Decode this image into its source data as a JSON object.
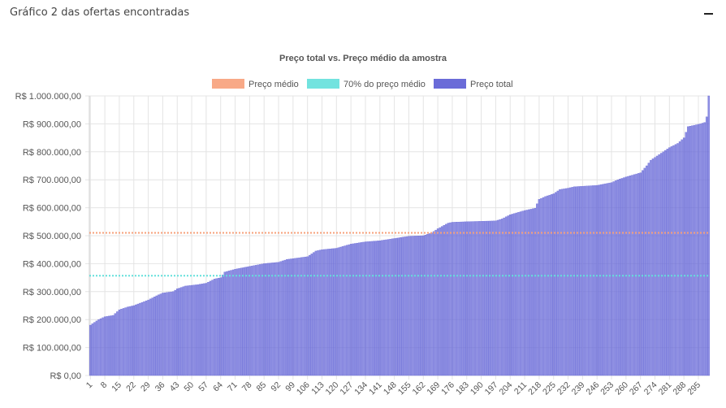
{
  "panel": {
    "title": "Gráfico 2 das ofertas encontradas",
    "collapse_icon": "minus-icon"
  },
  "chart_data": {
    "type": "bar",
    "title": "Preço total vs. Preço médio da amostra",
    "legend": [
      {
        "name": "Preço médio",
        "color": "#f7a07a",
        "style": "dotted-line"
      },
      {
        "name": "70% do preço médio",
        "color": "#63e0db",
        "style": "dotted-line"
      },
      {
        "name": "Preço total",
        "color": "#6a6bd8",
        "style": "bar"
      }
    ],
    "legend_position": "top",
    "grid": true,
    "ylim": [
      0,
      1000000
    ],
    "y_ticks": [
      "R$ 0,00",
      "R$ 100.000,00",
      "R$ 200.000,00",
      "R$ 300.000,00",
      "R$ 400.000,00",
      "R$ 500.000,00",
      "R$ 600.000,00",
      "R$ 700.000,00",
      "R$ 800.000,00",
      "R$ 900.000,00",
      "R$ 1.000.000,00"
    ],
    "x_tick_labels": [
      "1",
      "8",
      "15",
      "22",
      "29",
      "36",
      "43",
      "50",
      "57",
      "64",
      "71",
      "78",
      "85",
      "92",
      "99",
      "106",
      "113",
      "120",
      "127",
      "134",
      "141",
      "148",
      "155",
      "162",
      "169",
      "176",
      "183",
      "190",
      "197",
      "204",
      "211",
      "218",
      "225",
      "232",
      "239",
      "246",
      "253",
      "260",
      "267",
      "274",
      "281",
      "288",
      "295"
    ],
    "n_points": 300,
    "series": [
      {
        "name": "Preço médio",
        "type": "line",
        "value": 510000,
        "color": "#f7a07a"
      },
      {
        "name": "70% do preço médio",
        "type": "line",
        "value": 357000,
        "color": "#63e0db"
      },
      {
        "name": "Preço total",
        "type": "bar",
        "color": "#6a6bd8",
        "anchors": [
          [
            1,
            180000
          ],
          [
            5,
            200000
          ],
          [
            8,
            210000
          ],
          [
            12,
            215000
          ],
          [
            15,
            235000
          ],
          [
            19,
            245000
          ],
          [
            22,
            250000
          ],
          [
            29,
            270000
          ],
          [
            33,
            285000
          ],
          [
            36,
            295000
          ],
          [
            41,
            300000
          ],
          [
            43,
            310000
          ],
          [
            47,
            320000
          ],
          [
            53,
            325000
          ],
          [
            57,
            330000
          ],
          [
            61,
            345000
          ],
          [
            64,
            350000
          ],
          [
            66,
            370000
          ],
          [
            71,
            380000
          ],
          [
            78,
            390000
          ],
          [
            85,
            400000
          ],
          [
            92,
            405000
          ],
          [
            96,
            415000
          ],
          [
            106,
            425000
          ],
          [
            110,
            445000
          ],
          [
            113,
            450000
          ],
          [
            120,
            455000
          ],
          [
            127,
            470000
          ],
          [
            134,
            478000
          ],
          [
            141,
            482000
          ],
          [
            148,
            490000
          ],
          [
            155,
            498000
          ],
          [
            162,
            500000
          ],
          [
            166,
            510000
          ],
          [
            169,
            525000
          ],
          [
            174,
            545000
          ],
          [
            176,
            548000
          ],
          [
            183,
            550000
          ],
          [
            197,
            553000
          ],
          [
            200,
            560000
          ],
          [
            204,
            575000
          ],
          [
            211,
            590000
          ],
          [
            216,
            598000
          ],
          [
            218,
            630000
          ],
          [
            221,
            640000
          ],
          [
            225,
            650000
          ],
          [
            228,
            665000
          ],
          [
            232,
            670000
          ],
          [
            235,
            675000
          ],
          [
            246,
            680000
          ],
          [
            253,
            690000
          ],
          [
            256,
            700000
          ],
          [
            260,
            710000
          ],
          [
            267,
            725000
          ],
          [
            270,
            750000
          ],
          [
            272,
            770000
          ],
          [
            274,
            780000
          ],
          [
            278,
            800000
          ],
          [
            281,
            815000
          ],
          [
            285,
            830000
          ],
          [
            288,
            850000
          ],
          [
            290,
            890000
          ],
          [
            293,
            895000
          ],
          [
            296,
            900000
          ],
          [
            298,
            905000
          ],
          [
            299,
            925000
          ],
          [
            300,
            1000000
          ]
        ]
      }
    ]
  }
}
